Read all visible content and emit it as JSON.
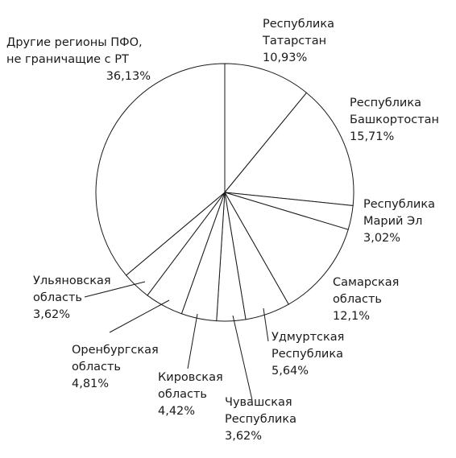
{
  "chart_data": {
    "type": "pie",
    "slices": [
      {
        "name_lines": [
          "Республика",
          "Татарстан"
        ],
        "value_label": "10,93%",
        "value": 10.93
      },
      {
        "name_lines": [
          "Республика",
          "Башкортостан"
        ],
        "value_label": "15,71%",
        "value": 15.71
      },
      {
        "name_lines": [
          "Республика",
          "Марий Эл"
        ],
        "value_label": "3,02%",
        "value": 3.02
      },
      {
        "name_lines": [
          "Самарская",
          "область"
        ],
        "value_label": "12,1%",
        "value": 12.1
      },
      {
        "name_lines": [
          "Удмуртская",
          "Республика"
        ],
        "value_label": "5,64%",
        "value": 5.64
      },
      {
        "name_lines": [
          "Чувашская",
          "Республика"
        ],
        "value_label": "3,62%",
        "value": 3.62
      },
      {
        "name_lines": [
          "Кировская",
          "область"
        ],
        "value_label": "4,42%",
        "value": 4.42
      },
      {
        "name_lines": [
          "Оренбургская",
          "область"
        ],
        "value_label": "4,81%",
        "value": 4.81
      },
      {
        "name_lines": [
          "Ульяновская",
          "область"
        ],
        "value_label": "3,62%",
        "value": 3.62
      },
      {
        "name_lines": [
          "Другие регионы ПФО,",
          "не граничащие с РТ"
        ],
        "value_label": "36,13%",
        "value": 36.13
      }
    ],
    "start_angle": "12 o'clock",
    "direction": "clockwise",
    "colors": {
      "fill": "#ffffff",
      "stroke": "#1a1a1a",
      "text": "#1a1a1a"
    }
  }
}
